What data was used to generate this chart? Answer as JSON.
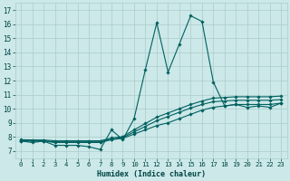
{
  "xlabel": "Humidex (Indice chaleur)",
  "xlim": [
    -0.5,
    23.5
  ],
  "ylim": [
    6.5,
    17.5
  ],
  "xticks": [
    0,
    1,
    2,
    3,
    4,
    5,
    6,
    7,
    8,
    9,
    10,
    11,
    12,
    13,
    14,
    15,
    16,
    17,
    18,
    19,
    20,
    21,
    22,
    23
  ],
  "yticks": [
    7,
    8,
    9,
    10,
    11,
    12,
    13,
    14,
    15,
    16,
    17
  ],
  "bg_color": "#cce8e8",
  "grid_color": "#aacccc",
  "line_color": "#006060",
  "line1_x": [
    0,
    1,
    2,
    3,
    4,
    5,
    6,
    7,
    8,
    9,
    10,
    11,
    12,
    13,
    14,
    15,
    16,
    17,
    18,
    19,
    20,
    21,
    22,
    23
  ],
  "line1_y": [
    7.7,
    7.6,
    7.7,
    7.4,
    7.4,
    7.4,
    7.3,
    7.1,
    8.5,
    7.8,
    9.3,
    12.8,
    16.1,
    12.6,
    14.6,
    16.6,
    16.2,
    11.9,
    10.2,
    10.3,
    10.1,
    10.2,
    10.1,
    10.4
  ],
  "line2_x": [
    0,
    1,
    2,
    3,
    4,
    5,
    6,
    7,
    8,
    9,
    10,
    11,
    12,
    13,
    14,
    15,
    16,
    17,
    18,
    19,
    20,
    21,
    22,
    23
  ],
  "line2_y": [
    7.75,
    7.72,
    7.72,
    7.65,
    7.65,
    7.65,
    7.65,
    7.65,
    7.85,
    7.95,
    8.35,
    8.75,
    9.15,
    9.45,
    9.75,
    10.05,
    10.3,
    10.5,
    10.55,
    10.6,
    10.6,
    10.6,
    10.6,
    10.65
  ],
  "line3_x": [
    0,
    1,
    2,
    3,
    4,
    5,
    6,
    7,
    8,
    9,
    10,
    11,
    12,
    13,
    14,
    15,
    16,
    17,
    18,
    19,
    20,
    21,
    22,
    23
  ],
  "line3_y": [
    7.8,
    7.78,
    7.78,
    7.72,
    7.72,
    7.72,
    7.72,
    7.72,
    7.92,
    8.02,
    8.5,
    8.95,
    9.4,
    9.7,
    10.0,
    10.3,
    10.55,
    10.75,
    10.8,
    10.85,
    10.85,
    10.85,
    10.85,
    10.9
  ],
  "line4_x": [
    0,
    1,
    2,
    3,
    4,
    5,
    6,
    7,
    8,
    9,
    10,
    11,
    12,
    13,
    14,
    15,
    16,
    17,
    18,
    19,
    20,
    21,
    22,
    23
  ],
  "line4_y": [
    7.7,
    7.7,
    7.7,
    7.6,
    7.6,
    7.6,
    7.6,
    7.6,
    7.8,
    7.9,
    8.2,
    8.5,
    8.8,
    9.0,
    9.3,
    9.6,
    9.9,
    10.1,
    10.2,
    10.3,
    10.3,
    10.3,
    10.3,
    10.4
  ]
}
